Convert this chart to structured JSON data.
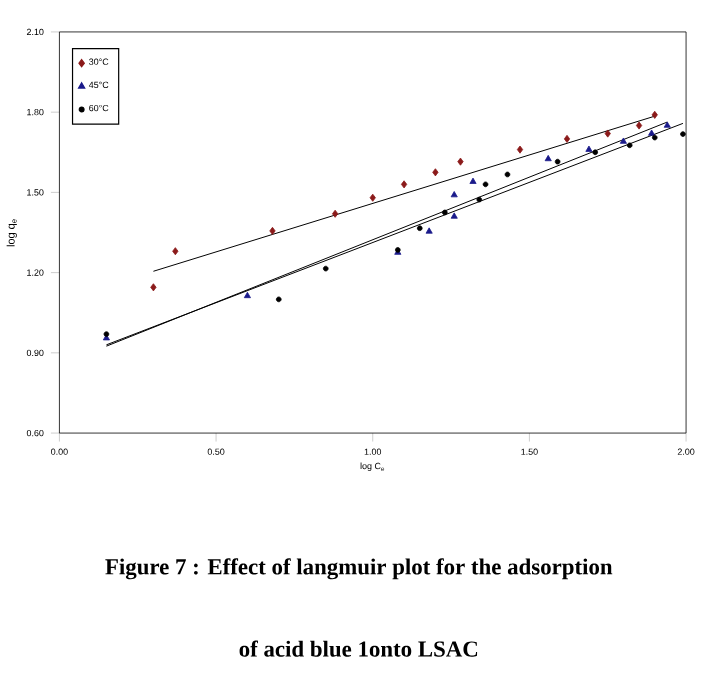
{
  "chart_data": {
    "type": "scatter",
    "xlabel": "log C$_{e}$",
    "ylabel": "log q$_{e}$",
    "annotations": [
      "Figure 7 : Effect of langmuir plot for the adsorption",
      "of acid blue 1onto LSAC"
    ],
    "xlim": [
      0,
      2
    ],
    "ylim": [
      0.6,
      2.1
    ],
    "xticks": [
      {
        "value": 0,
        "label": "0.00"
      },
      {
        "value": 0.5,
        "label": "0.50"
      },
      {
        "value": 1,
        "label": "1.00"
      },
      {
        "value": 1.5,
        "label": "1.50"
      },
      {
        "value": 2,
        "label": "2.00"
      }
    ],
    "yticks": [
      {
        "value": 0.6,
        "label": "0.60"
      },
      {
        "value": 0.9,
        "label": "0.90"
      },
      {
        "value": 1.2,
        "label": "1.20"
      },
      {
        "value": 1.5,
        "label": "1.50"
      },
      {
        "value": 1.8,
        "label": "1.80"
      },
      {
        "value": 2.1,
        "label": "2.10"
      }
    ],
    "legend": "top left",
    "grid": false,
    "series": [
      {
        "name": "30°C",
        "color": "#8b1a1a",
        "marker": "diamond",
        "x": [
          0.3,
          0.37,
          0.68,
          0.88,
          1.0,
          1.1,
          1.2,
          1.28,
          1.47,
          1.62,
          1.75,
          1.85,
          1.9
        ],
        "values": [
          1.145,
          1.28,
          1.356,
          1.42,
          1.48,
          1.53,
          1.575,
          1.615,
          1.66,
          1.7,
          1.72,
          1.75,
          1.79
        ]
      },
      {
        "name": "45°C",
        "color": "#1a1a8b",
        "marker": "triangle",
        "x": [
          0.15,
          0.6,
          1.08,
          1.18,
          1.26,
          1.26,
          1.32,
          1.56,
          1.69,
          1.8,
          1.89,
          1.94
        ],
        "values": [
          0.955,
          1.113,
          1.275,
          1.354,
          1.49,
          1.41,
          1.54,
          1.625,
          1.66,
          1.69,
          1.72,
          1.75
        ]
      },
      {
        "name": "60°C",
        "color": "#000000",
        "marker": "circle",
        "x": [
          0.15,
          0.7,
          0.85,
          1.08,
          1.15,
          1.23,
          1.34,
          1.36,
          1.43,
          1.59,
          1.71,
          1.82,
          1.9,
          1.99
        ],
        "values": [
          0.97,
          1.1,
          1.215,
          1.285,
          1.366,
          1.425,
          1.473,
          1.53,
          1.567,
          1.615,
          1.65,
          1.676,
          1.705,
          1.718
        ]
      },
      {
        "type": "line",
        "color": "#000000",
        "x": [
          0.3,
          1.9
        ],
        "values": [
          1.205,
          1.785
        ]
      },
      {
        "type": "line",
        "color": "#000000",
        "x": [
          0.15,
          1.94
        ],
        "values": [
          0.925,
          1.763
        ]
      },
      {
        "type": "line",
        "color": "#000000",
        "x": [
          0.15,
          1.99
        ],
        "values": [
          0.93,
          1.758
        ]
      }
    ]
  }
}
